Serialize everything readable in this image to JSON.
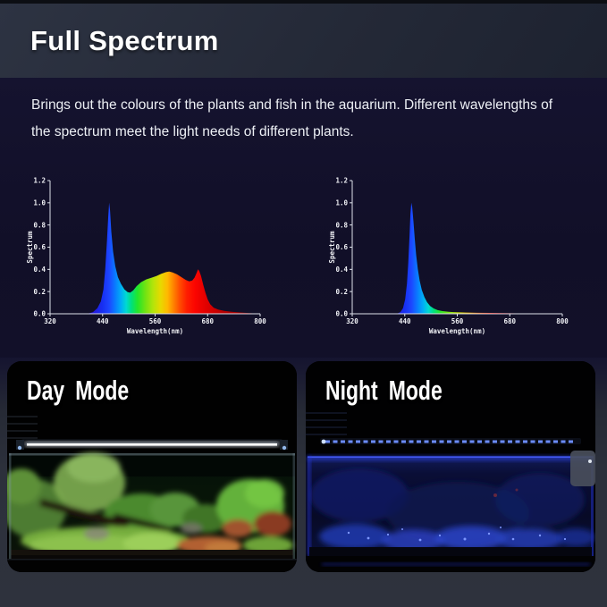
{
  "header": {
    "title": "Full Spectrum"
  },
  "intro": {
    "line1": "Brings out the colours of the plants and fish in the aquarium.  Different wavelengths of",
    "line2": "the spectrum meet the light needs of different plants."
  },
  "colors": {
    "header_bg": "#242937",
    "body_bg": "#110f28",
    "photos_bg": "#2c303b",
    "axis": "#dde1ea",
    "day_light": "#ffffff",
    "night_light": "#3a50ff"
  },
  "chart_data": [
    {
      "type": "area",
      "name": "day-full-spectrum",
      "xlabel": "Wavelength(nm)",
      "ylabel": "Spectrum",
      "xlim": [
        320,
        800
      ],
      "ylim": [
        0,
        1.2
      ],
      "x_ticks": [
        320,
        440,
        560,
        680,
        800
      ],
      "y_ticks": [
        0.0,
        0.2,
        0.4,
        0.6,
        0.8,
        1.0,
        1.2
      ],
      "grid": false,
      "legend": "none",
      "points": [
        [
          320,
          0
        ],
        [
          405,
          0
        ],
        [
          418,
          0.015
        ],
        [
          428,
          0.05
        ],
        [
          436,
          0.11
        ],
        [
          442,
          0.22
        ],
        [
          446,
          0.4
        ],
        [
          450,
          0.65
        ],
        [
          453,
          0.88
        ],
        [
          455,
          1.0
        ],
        [
          457,
          0.93
        ],
        [
          460,
          0.74
        ],
        [
          464,
          0.56
        ],
        [
          469,
          0.43
        ],
        [
          475,
          0.33
        ],
        [
          482,
          0.27
        ],
        [
          490,
          0.22
        ],
        [
          497,
          0.195
        ],
        [
          503,
          0.19
        ],
        [
          510,
          0.21
        ],
        [
          518,
          0.25
        ],
        [
          528,
          0.285
        ],
        [
          540,
          0.31
        ],
        [
          552,
          0.325
        ],
        [
          563,
          0.34
        ],
        [
          574,
          0.36
        ],
        [
          585,
          0.375
        ],
        [
          592,
          0.38
        ],
        [
          600,
          0.372
        ],
        [
          610,
          0.355
        ],
        [
          620,
          0.33
        ],
        [
          630,
          0.305
        ],
        [
          638,
          0.292
        ],
        [
          645,
          0.3
        ],
        [
          650,
          0.325
        ],
        [
          655,
          0.37
        ],
        [
          658,
          0.4
        ],
        [
          661,
          0.385
        ],
        [
          665,
          0.34
        ],
        [
          670,
          0.26
        ],
        [
          675,
          0.19
        ],
        [
          680,
          0.13
        ],
        [
          686,
          0.085
        ],
        [
          694,
          0.055
        ],
        [
          704,
          0.038
        ],
        [
          718,
          0.026
        ],
        [
          735,
          0.018
        ],
        [
          755,
          0.012
        ],
        [
          775,
          0.006
        ],
        [
          800,
          0
        ]
      ],
      "gradient": [
        [
          400,
          "#2f00c8"
        ],
        [
          440,
          "#1730f2"
        ],
        [
          455,
          "#1d46ff"
        ],
        [
          468,
          "#0a78ff"
        ],
        [
          482,
          "#00adf5"
        ],
        [
          494,
          "#00d9d2"
        ],
        [
          506,
          "#00e07c"
        ],
        [
          520,
          "#23e62a"
        ],
        [
          538,
          "#72e312"
        ],
        [
          556,
          "#b5e40a"
        ],
        [
          572,
          "#e6da00"
        ],
        [
          588,
          "#ffb900"
        ],
        [
          602,
          "#ff8400"
        ],
        [
          616,
          "#ff4d00"
        ],
        [
          632,
          "#ff1e00"
        ],
        [
          652,
          "#fb0400"
        ],
        [
          678,
          "#e00000"
        ],
        [
          720,
          "#b40000"
        ],
        [
          800,
          "#8c0000"
        ]
      ]
    },
    {
      "type": "area",
      "name": "night-blue-spectrum",
      "xlabel": "Wavelength(nm)",
      "ylabel": "Spectrum",
      "xlim": [
        320,
        800
      ],
      "ylim": [
        0,
        1.2
      ],
      "x_ticks": [
        320,
        440,
        560,
        680,
        800
      ],
      "y_ticks": [
        0.0,
        0.2,
        0.4,
        0.6,
        0.8,
        1.0,
        1.2
      ],
      "grid": false,
      "legend": "none",
      "points": [
        [
          320,
          0
        ],
        [
          422,
          0
        ],
        [
          430,
          0.015
        ],
        [
          436,
          0.05
        ],
        [
          441,
          0.13
        ],
        [
          445,
          0.27
        ],
        [
          448,
          0.46
        ],
        [
          451,
          0.7
        ],
        [
          453,
          0.9
        ],
        [
          455,
          1.0
        ],
        [
          457,
          0.96
        ],
        [
          460,
          0.83
        ],
        [
          463,
          0.67
        ],
        [
          466,
          0.53
        ],
        [
          470,
          0.4
        ],
        [
          474,
          0.3
        ],
        [
          479,
          0.215
        ],
        [
          485,
          0.15
        ],
        [
          491,
          0.105
        ],
        [
          498,
          0.07
        ],
        [
          506,
          0.048
        ],
        [
          515,
          0.033
        ],
        [
          526,
          0.024
        ],
        [
          540,
          0.018
        ],
        [
          558,
          0.014
        ],
        [
          580,
          0.011
        ],
        [
          605,
          0.009
        ],
        [
          635,
          0.008
        ],
        [
          665,
          0.006
        ],
        [
          695,
          0.004
        ],
        [
          730,
          0.003
        ],
        [
          765,
          0.002
        ],
        [
          800,
          0
        ]
      ],
      "gradient": [
        [
          400,
          "#2f00c8"
        ],
        [
          440,
          "#1730f2"
        ],
        [
          455,
          "#1d46ff"
        ],
        [
          468,
          "#0a78ff"
        ],
        [
          482,
          "#00adf5"
        ],
        [
          494,
          "#00d9d2"
        ],
        [
          506,
          "#00e07c"
        ],
        [
          520,
          "#23e62a"
        ],
        [
          538,
          "#72e312"
        ],
        [
          556,
          "#b5e40a"
        ],
        [
          572,
          "#e6da00"
        ],
        [
          588,
          "#ffb900"
        ],
        [
          602,
          "#ff8400"
        ],
        [
          616,
          "#ff4d00"
        ],
        [
          632,
          "#ff1e00"
        ],
        [
          652,
          "#fb0400"
        ],
        [
          678,
          "#e00000"
        ],
        [
          720,
          "#b40000"
        ],
        [
          800,
          "#8c0000"
        ]
      ]
    }
  ],
  "photos": {
    "day_label": "Day Mode",
    "night_label": "Night Mode"
  }
}
